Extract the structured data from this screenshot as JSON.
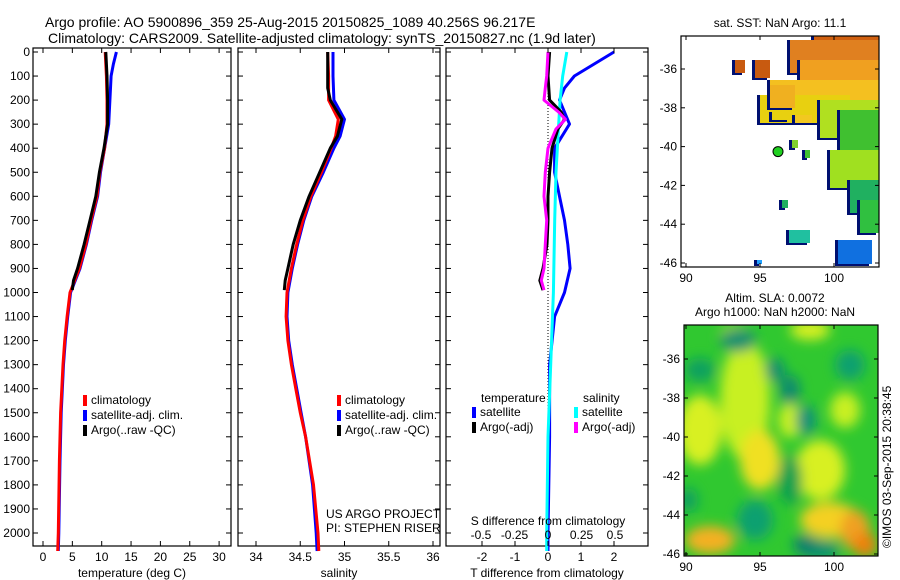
{
  "title": {
    "line1": "Argo profile: AO 5900896_359 25-Aug-2015 20150825_1089 40.256S 96.217E",
    "line2": "Climatology: CARS2009. Satellite-adjusted climatology: synTS_20150827.nc (1.9d later)"
  },
  "credits": {
    "project": "US ARGO PROJECT",
    "pi": "PI: STEPHEN RISER"
  },
  "timestamp": "©IMOS 03-Sep-2015 20:38:45",
  "colors": {
    "climatology": "#ff0000",
    "satellite": "#0000ff",
    "argo": "#000000",
    "sal_satellite": "#00ffff",
    "sal_argo": "#ff00ff"
  },
  "chart_data": [
    {
      "type": "line",
      "name": "temperature",
      "xlabel": "temperature (deg C)",
      "ylabel": "",
      "xlim": [
        -2,
        32
      ],
      "ylim": [
        2075,
        0
      ],
      "xticks": [
        "0",
        "5",
        "10",
        "15",
        "20",
        "25",
        "30"
      ],
      "yticks": [
        "0",
        "100",
        "200",
        "300",
        "400",
        "500",
        "600",
        "700",
        "800",
        "900",
        "1000",
        "1100",
        "1200",
        "1300",
        "1400",
        "1500",
        "1600",
        "1700",
        "1800",
        "1900",
        "2000"
      ],
      "legend": [
        "climatology",
        "satellite-adj. clim.",
        "Argo(..raw -QC)"
      ],
      "legend_position": "lower-center",
      "series": [
        {
          "name": "climatology",
          "depth": [
            0,
            100,
            200,
            300,
            400,
            500,
            600,
            700,
            800,
            900,
            950,
            1000,
            1100,
            1200,
            1300,
            1500,
            1700,
            2000,
            2075
          ],
          "values": [
            10.6,
            10.8,
            10.9,
            10.9,
            10.5,
            9.7,
            9.2,
            8.2,
            7.3,
            6.2,
            5.4,
            4.6,
            4.1,
            3.7,
            3.4,
            3.0,
            2.8,
            2.6,
            2.5
          ]
        },
        {
          "name": "satellite-adj. clim.",
          "depth": [
            0,
            50,
            100,
            200,
            300,
            400,
            500,
            600,
            700,
            800,
            900,
            950,
            1000,
            1100,
            1200,
            1300,
            1500,
            1700,
            2000,
            2075
          ],
          "values": [
            12.5,
            12.0,
            11.6,
            11.4,
            11.2,
            10.5,
            9.8,
            9.3,
            8.3,
            7.4,
            6.3,
            5.5,
            4.7,
            4.2,
            3.8,
            3.5,
            3.1,
            2.9,
            2.7,
            2.6
          ]
        },
        {
          "name": "Argo(..raw -QC)",
          "depth": [
            0,
            100,
            200,
            300,
            400,
            500,
            600,
            700,
            800,
            900,
            950,
            990
          ],
          "values": [
            10.7,
            10.9,
            11.0,
            11.0,
            10.4,
            9.6,
            9.0,
            8.0,
            7.0,
            5.9,
            5.2,
            5.0
          ]
        }
      ]
    },
    {
      "type": "line",
      "name": "salinity",
      "xlabel": "salinity",
      "xlim": [
        33.85,
        36.05
      ],
      "ylim": [
        2075,
        0
      ],
      "xticks": [
        "34",
        "34.5",
        "35",
        "35.5",
        "36"
      ],
      "legend": [
        "climatology",
        "satellite-adj. clim.",
        "Argo(..raw -QC)"
      ],
      "legend_position": "lower-center",
      "series": [
        {
          "name": "climatology",
          "depth": [
            0,
            100,
            200,
            280,
            350,
            400,
            500,
            600,
            700,
            800,
            900,
            1000,
            1100,
            1200,
            1300,
            1400,
            1500,
            1600,
            1800,
            2000,
            2075
          ],
          "values": [
            34.81,
            34.82,
            34.82,
            34.93,
            34.9,
            34.85,
            34.74,
            34.62,
            34.53,
            34.46,
            34.4,
            34.35,
            34.34,
            34.36,
            34.4,
            34.45,
            34.5,
            34.56,
            34.65,
            34.7,
            34.71
          ]
        },
        {
          "name": "satellite-adj. clim.",
          "depth": [
            0,
            100,
            200,
            280,
            350,
            400,
            500,
            600,
            700,
            800,
            900,
            1000,
            1100,
            1200,
            1300,
            1400,
            1500,
            1600,
            1800,
            2000,
            2075
          ],
          "values": [
            34.87,
            34.87,
            34.88,
            35.0,
            34.95,
            34.88,
            34.76,
            34.63,
            34.54,
            34.47,
            34.41,
            34.36,
            34.35,
            34.37,
            34.41,
            34.46,
            34.51,
            34.56,
            34.64,
            34.68,
            34.69
          ]
        },
        {
          "name": "Argo(..raw -QC)",
          "depth": [
            0,
            100,
            150,
            200,
            280,
            350,
            400,
            500,
            600,
            700,
            800,
            900,
            950,
            990
          ],
          "values": [
            34.81,
            34.81,
            34.81,
            34.84,
            34.97,
            34.92,
            34.84,
            34.72,
            34.6,
            34.5,
            34.42,
            34.36,
            34.33,
            34.32
          ]
        }
      ]
    },
    {
      "type": "line",
      "name": "differences",
      "xlabel": "T difference from climatology",
      "xlabel2": "S difference from climatology",
      "xlim": [
        -3,
        3
      ],
      "ylim": [
        2075,
        0
      ],
      "xticks": [
        "-2",
        "-1",
        "0",
        "1",
        "2"
      ],
      "xticks2": [
        "-0.5",
        "-0.25",
        "0",
        "0.25",
        "0.5"
      ],
      "legend_temperature": {
        "title": "temperature",
        "items": [
          "satellite",
          "Argo(-adj)"
        ]
      },
      "legend_salinity": {
        "title": "salinity",
        "items": [
          "satellite",
          "Argo(-adj)"
        ]
      },
      "series": [
        {
          "name": "T satellite",
          "depth": [
            0,
            50,
            100,
            150,
            200,
            300,
            400,
            500,
            600,
            700,
            800,
            900,
            1000,
            1100,
            1300,
            1600,
            2000,
            2075
          ],
          "values": [
            2.0,
            1.4,
            0.8,
            0.5,
            0.35,
            0.65,
            0.2,
            0.2,
            0.35,
            0.5,
            0.6,
            0.67,
            0.5,
            0.2,
            0.05,
            0.05,
            0.0,
            0.0
          ]
        },
        {
          "name": "S satellite",
          "depth": [
            0,
            100,
            200,
            300,
            500,
            700,
            1000,
            1300,
            1600,
            2000,
            2075
          ],
          "values": [
            0.14,
            0.11,
            0.09,
            0.08,
            0.06,
            0.05,
            0.04,
            0.02,
            0.0,
            -0.01,
            -0.01
          ]
        },
        {
          "name": "T Argo(-adj)",
          "depth": [
            0,
            100,
            200,
            250,
            280,
            320,
            400,
            500,
            600,
            700,
            800,
            900,
            950,
            990
          ],
          "values": [
            0.05,
            0.0,
            0.05,
            0.4,
            0.5,
            0.3,
            0.12,
            0.05,
            0.0,
            0.0,
            -0.03,
            -0.15,
            -0.25,
            -0.15
          ]
        },
        {
          "name": "S Argo(-adj)",
          "depth": [
            0,
            100,
            150,
            200,
            250,
            280,
            320,
            400,
            500,
            600,
            700,
            800,
            900,
            950,
            990
          ],
          "values": [
            0.0,
            -0.01,
            -0.02,
            -0.03,
            0.08,
            0.13,
            0.06,
            0.0,
            -0.02,
            -0.03,
            -0.01,
            -0.02,
            -0.03,
            -0.05,
            -0.03
          ]
        }
      ]
    },
    {
      "type": "heatmap",
      "name": "sst-map",
      "title": "sat. SST: NaN Argo: 11.1",
      "xlim": [
        88.9,
        102.9
      ],
      "ylim": [
        -46.2,
        -34.2
      ],
      "xticks": [
        "90",
        "95",
        "100"
      ],
      "yticks": [
        "-36",
        "-38",
        "-40",
        "-42",
        "-44",
        "-46"
      ],
      "argo_position": {
        "lon": 96.217,
        "lat": -40.256
      }
    },
    {
      "type": "heatmap",
      "name": "sla-map",
      "title": "Altim. SLA: 0.0072",
      "subtitle": "Argo h1000: NaN h2000: NaN",
      "xlim": [
        88.9,
        102.9
      ],
      "ylim": [
        -46.2,
        -34.3
      ],
      "xticks": [
        "90",
        "95",
        "100"
      ],
      "yticks": [
        "-36",
        "-38",
        "-40",
        "-42",
        "-44",
        "-46"
      ]
    }
  ]
}
